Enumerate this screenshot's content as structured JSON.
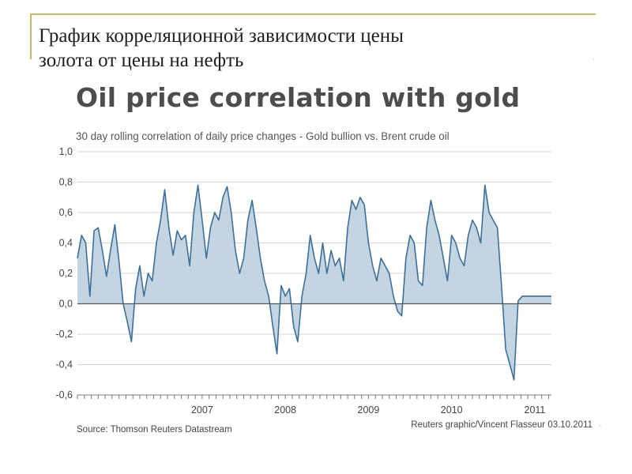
{
  "slide": {
    "title_line1": "График корреляционной зависимости цены",
    "title_line2": "золота от цены на нефть"
  },
  "chart_data": {
    "type": "area",
    "title": "Oil price correlation with gold",
    "subtitle": "30 day rolling correlation of daily price changes - Gold bullion vs. Brent crude oil",
    "source": "Source: Thomson Reuters Datastream",
    "credit": "Reuters graphic/Vincent Flasseur 03.10.2011",
    "xlabel": "",
    "ylabel": "",
    "ylim": [
      -0.6,
      1.0
    ],
    "xlim": [
      2006.0,
      2011.7
    ],
    "y_ticks": [
      1.0,
      0.8,
      0.6,
      0.4,
      0.2,
      0.0,
      -0.2,
      -0.4,
      -0.6
    ],
    "y_tick_labels": [
      "1,0",
      "0,8",
      "0,6",
      "0,4",
      "0,2",
      "0,0",
      "-0,2",
      "-0,4",
      "-0,6"
    ],
    "x_tick_labels": [
      "2007",
      "2008",
      "2009",
      "2010",
      "2011"
    ],
    "x_tick_positions": [
      2007.0,
      2008.0,
      2009.0,
      2010.0,
      2011.0
    ],
    "grid": true,
    "colors": {
      "line": "#3f6f96",
      "fill": "#b9cddd",
      "grid": "#d6d6d6",
      "zero": "#555555"
    },
    "x": [
      2006.0,
      2006.05,
      2006.1,
      2006.15,
      2006.2,
      2006.25,
      2006.3,
      2006.35,
      2006.4,
      2006.45,
      2006.5,
      2006.55,
      2006.6,
      2006.65,
      2006.7,
      2006.75,
      2006.8,
      2006.85,
      2006.9,
      2006.95,
      2007.0,
      2007.05,
      2007.1,
      2007.15,
      2007.2,
      2007.25,
      2007.3,
      2007.35,
      2007.4,
      2007.45,
      2007.5,
      2007.55,
      2007.6,
      2007.65,
      2007.7,
      2007.75,
      2007.8,
      2007.85,
      2007.9,
      2007.95,
      2008.0,
      2008.05,
      2008.1,
      2008.15,
      2008.2,
      2008.25,
      2008.3,
      2008.35,
      2008.4,
      2008.45,
      2008.5,
      2008.55,
      2008.6,
      2008.65,
      2008.7,
      2008.75,
      2008.8,
      2008.85,
      2008.9,
      2008.95,
      2009.0,
      2009.05,
      2009.1,
      2009.15,
      2009.2,
      2009.25,
      2009.3,
      2009.35,
      2009.4,
      2009.45,
      2009.5,
      2009.55,
      2009.6,
      2009.65,
      2009.7,
      2009.75,
      2009.8,
      2009.85,
      2009.9,
      2009.95,
      2010.0,
      2010.05,
      2010.1,
      2010.15,
      2010.2,
      2010.25,
      2010.3,
      2010.35,
      2010.4,
      2010.45,
      2010.5,
      2010.55,
      2010.6,
      2010.65,
      2010.7,
      2010.75,
      2010.8,
      2010.85,
      2010.9,
      2010.95,
      2011.0,
      2011.05,
      2011.1,
      2011.15,
      2011.2,
      2011.25,
      2011.3,
      2011.35,
      2011.4,
      2011.45,
      2011.5,
      2011.55,
      2011.6,
      2011.65,
      2011.7
    ],
    "series": [
      {
        "values": [
          0.3,
          0.45,
          0.4,
          0.05,
          0.48,
          0.5,
          0.35,
          0.18,
          0.36,
          0.52,
          0.28,
          0.0,
          -0.12,
          -0.25,
          0.1,
          0.25,
          0.05,
          0.2,
          0.15,
          0.4,
          0.55,
          0.75,
          0.5,
          0.32,
          0.48,
          0.42,
          0.45,
          0.25,
          0.6,
          0.78,
          0.55,
          0.3,
          0.5,
          0.6,
          0.55,
          0.7,
          0.77,
          0.6,
          0.35,
          0.2,
          0.3,
          0.55,
          0.68,
          0.5,
          0.3,
          0.15,
          0.05,
          -0.15,
          -0.33,
          0.12,
          0.05,
          0.1,
          -0.15,
          -0.25,
          0.05,
          0.2,
          0.45,
          0.3,
          0.2,
          0.4,
          0.2,
          0.35,
          0.25,
          0.3,
          0.15,
          0.5,
          0.68,
          0.62,
          0.7,
          0.65,
          0.4,
          0.25,
          0.15,
          0.3,
          0.25,
          0.2,
          0.05,
          -0.05,
          -0.08,
          0.3,
          0.45,
          0.4,
          0.15,
          0.12,
          0.5,
          0.68,
          0.55,
          0.45,
          0.3,
          0.15,
          0.45,
          0.4,
          0.3,
          0.25,
          0.45,
          0.55,
          0.5,
          0.4,
          0.78,
          0.6,
          0.55,
          0.5,
          0.12,
          -0.3,
          -0.4,
          -0.5,
          0.02,
          0.05,
          0.05,
          0.05,
          0.05,
          0.05,
          0.05,
          0.05,
          0.05
        ],
        "note_len": 106
      }
    ]
  }
}
